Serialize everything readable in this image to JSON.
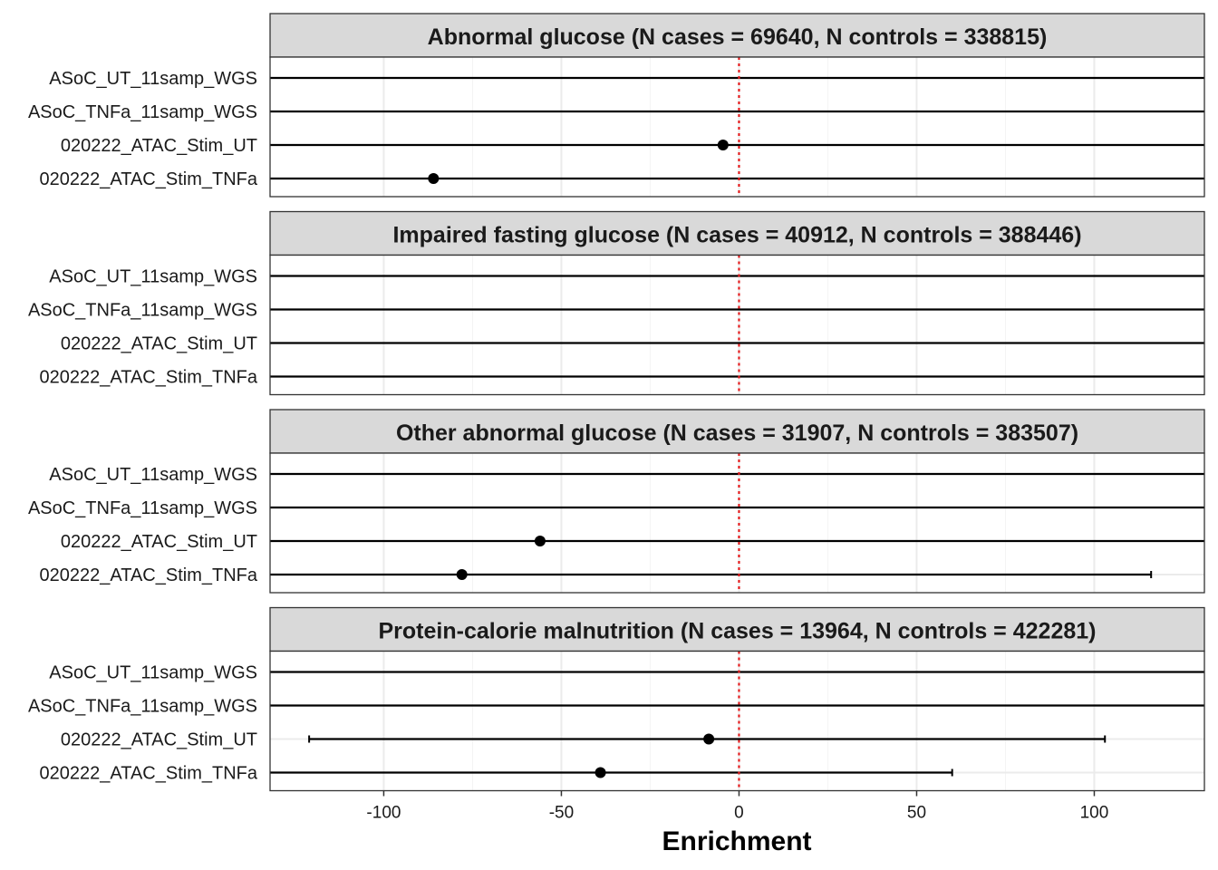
{
  "chart_data": {
    "type": "scatter",
    "xlabel": "Enrichment",
    "xlim": [
      -132,
      131
    ],
    "x_ticks": [
      -100,
      -50,
      0,
      50,
      100
    ],
    "x_tick_labels": [
      "-100",
      "-50",
      "0",
      "50",
      "100"
    ],
    "reference_line": 0,
    "reference_line_color": "#e41a1c",
    "grid": true,
    "categories": [
      "ASoC_UT_11samp_WGS",
      "ASoC_TNFa_11samp_WGS",
      "020222_ATAC_Stim_UT",
      "020222_ATAC_Stim_TNFa"
    ],
    "facets": [
      {
        "title": "Abnormal glucose (N cases = 69640, N controls = 338815)",
        "rows": [
          {
            "label": "ASoC_UT_11samp_WGS",
            "estimate": null,
            "lower": -132,
            "upper": 131,
            "ci_capped": false
          },
          {
            "label": "ASoC_TNFa_11samp_WGS",
            "estimate": null,
            "lower": -132,
            "upper": 131,
            "ci_capped": false
          },
          {
            "label": "020222_ATAC_Stim_UT",
            "estimate": -4.5,
            "lower": -132,
            "upper": 131,
            "ci_capped": false
          },
          {
            "label": "020222_ATAC_Stim_TNFa",
            "estimate": -86,
            "lower": -132,
            "upper": 131,
            "ci_capped": false
          }
        ]
      },
      {
        "title": "Impaired fasting glucose (N cases = 40912, N controls = 388446)",
        "rows": [
          {
            "label": "ASoC_UT_11samp_WGS",
            "estimate": null,
            "lower": -132,
            "upper": 131,
            "ci_capped": false
          },
          {
            "label": "ASoC_TNFa_11samp_WGS",
            "estimate": null,
            "lower": -132,
            "upper": 131,
            "ci_capped": false
          },
          {
            "label": "020222_ATAC_Stim_UT",
            "estimate": null,
            "lower": -132,
            "upper": 131,
            "ci_capped": false
          },
          {
            "label": "020222_ATAC_Stim_TNFa",
            "estimate": null,
            "lower": -132,
            "upper": 131,
            "ci_capped": false
          }
        ]
      },
      {
        "title": "Other abnormal glucose (N cases = 31907, N controls = 383507)",
        "rows": [
          {
            "label": "ASoC_UT_11samp_WGS",
            "estimate": null,
            "lower": -132,
            "upper": 131,
            "ci_capped": false
          },
          {
            "label": "ASoC_TNFa_11samp_WGS",
            "estimate": null,
            "lower": -132,
            "upper": 131,
            "ci_capped": false
          },
          {
            "label": "020222_ATAC_Stim_UT",
            "estimate": -56,
            "lower": -132,
            "upper": 131,
            "ci_capped": false
          },
          {
            "label": "020222_ATAC_Stim_TNFa",
            "estimate": -78,
            "lower": -132,
            "upper": 116,
            "ci_capped": true
          }
        ]
      },
      {
        "title": "Protein-calorie malnutrition (N cases = 13964, N controls = 422281)",
        "rows": [
          {
            "label": "ASoC_UT_11samp_WGS",
            "estimate": null,
            "lower": -132,
            "upper": 131,
            "ci_capped": false
          },
          {
            "label": "ASoC_TNFa_11samp_WGS",
            "estimate": null,
            "lower": -132,
            "upper": 131,
            "ci_capped": false
          },
          {
            "label": "020222_ATAC_Stim_UT",
            "estimate": -8.5,
            "lower": -121,
            "upper": 103,
            "ci_capped": true
          },
          {
            "label": "020222_ATAC_Stim_TNFa",
            "estimate": -39,
            "lower": -132,
            "upper": 60,
            "ci_capped": true
          }
        ]
      }
    ]
  }
}
